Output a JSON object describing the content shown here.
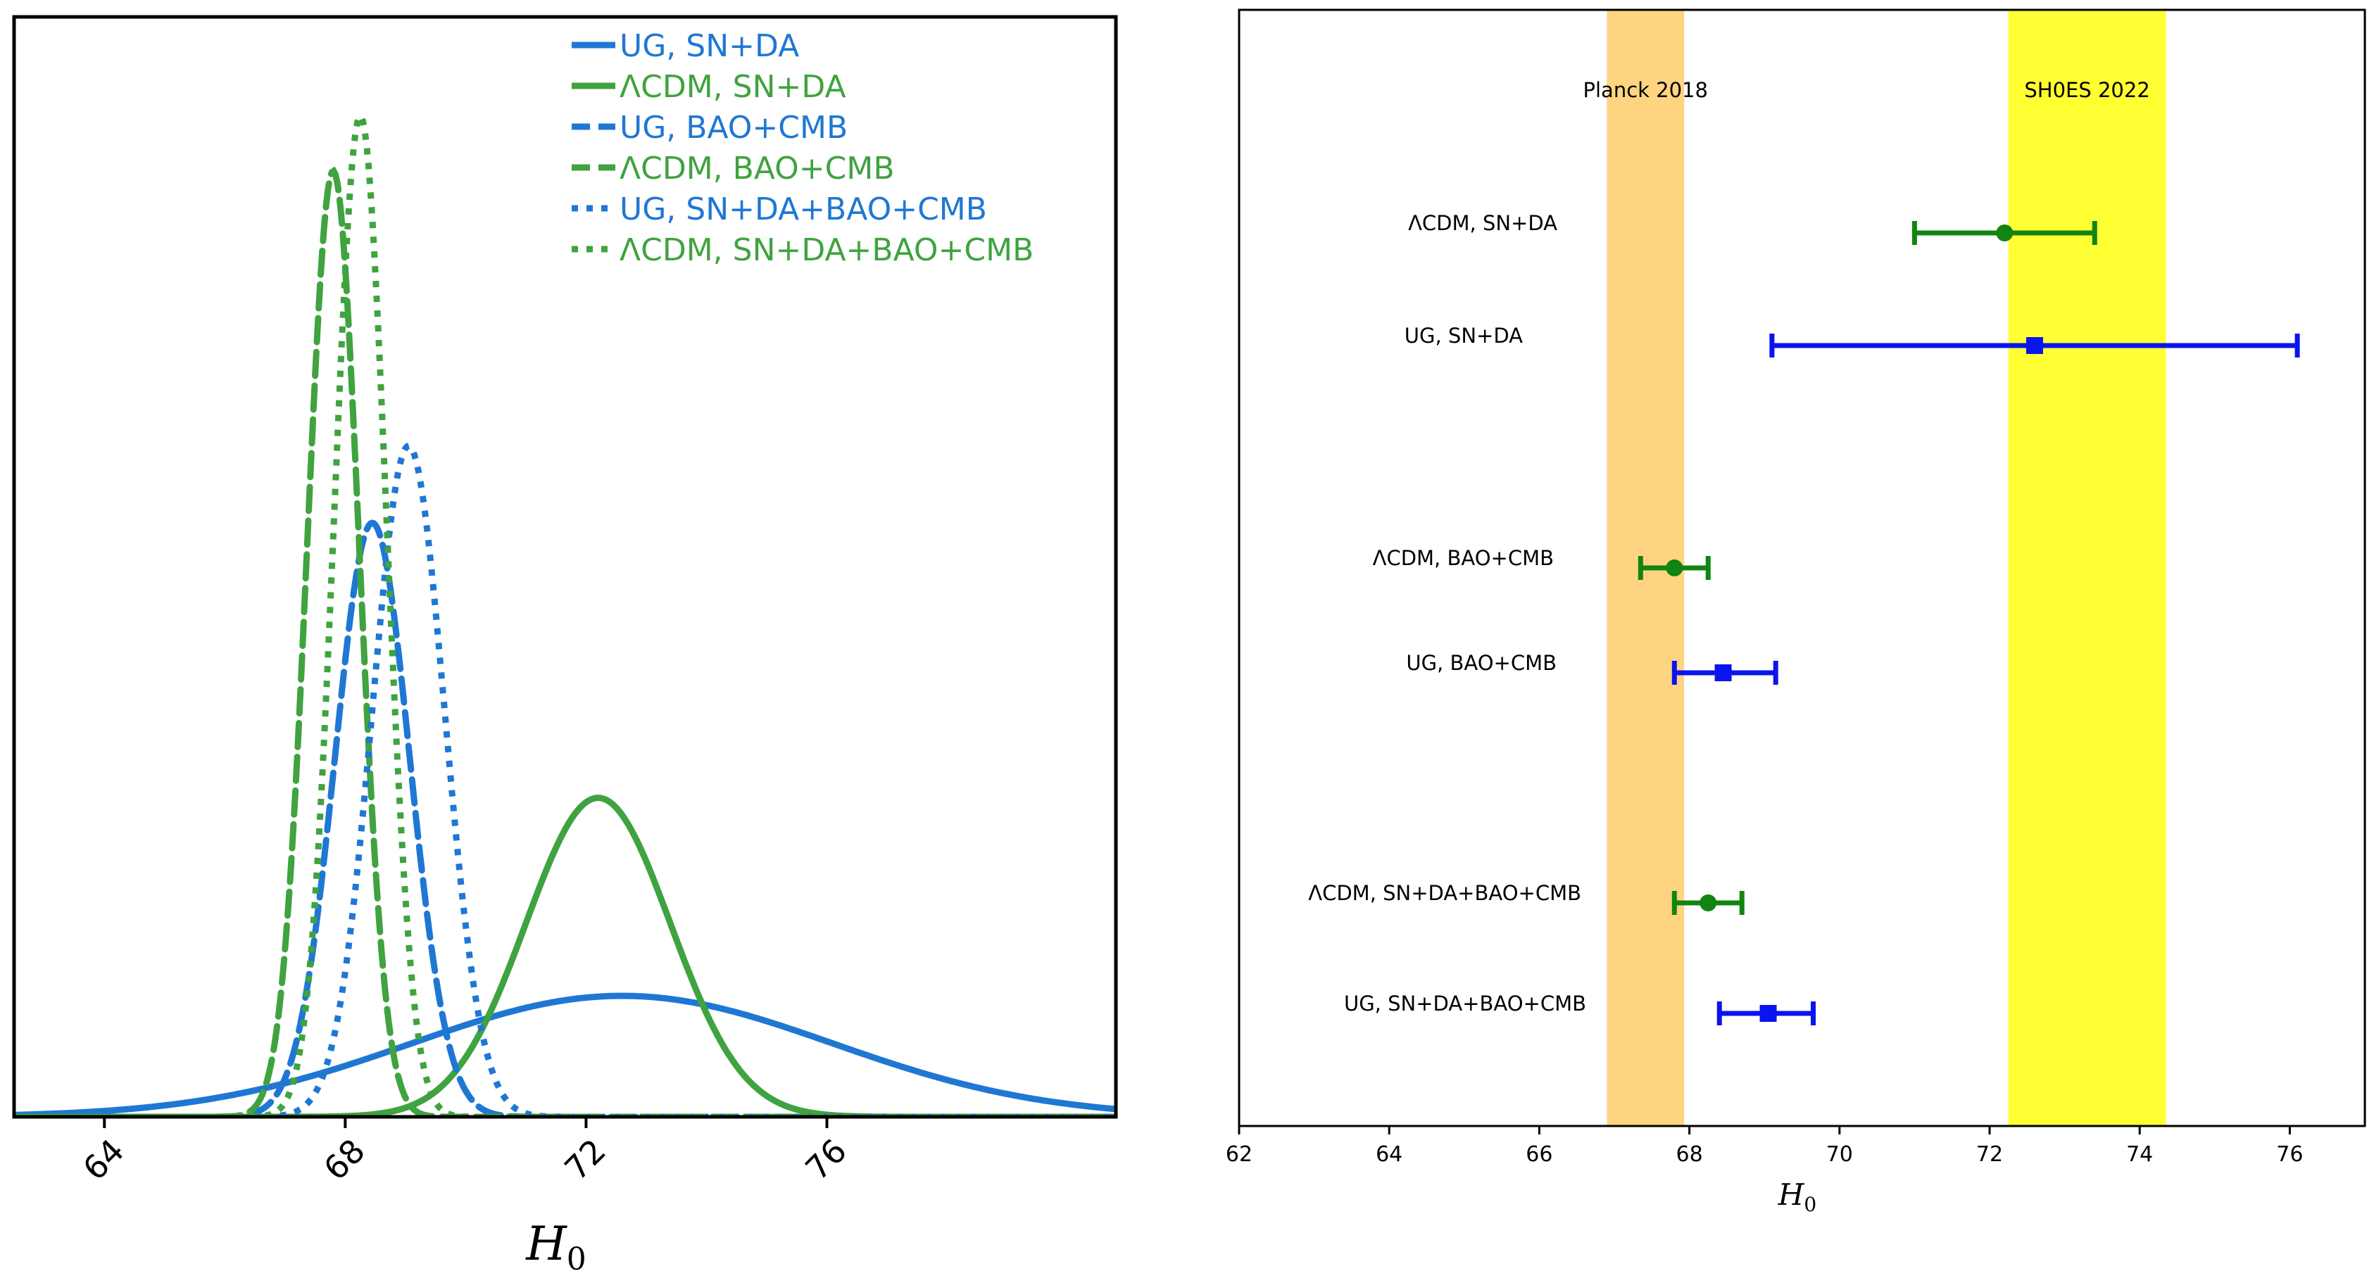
{
  "chart_data": [
    {
      "type": "line",
      "title": "",
      "xlabel": "H",
      "xlabel_sub": "0",
      "ylabel": "",
      "xlim": [
        62.5,
        80.8
      ],
      "ylim": [
        0,
        1.0
      ],
      "xticks": [
        64,
        68,
        72,
        76
      ],
      "xtick_labels": [
        "64",
        "68",
        "72",
        "76"
      ],
      "legend_position": "top-right",
      "series": [
        {
          "name": "UG, SN+DA",
          "model": "UG",
          "style": "solid",
          "mean": 72.6,
          "sigma": 3.5,
          "peak": 0.11
        },
        {
          "name": "ΛCDM, SN+DA",
          "model": "LCDM",
          "style": "solid",
          "mean": 72.2,
          "sigma": 1.2,
          "peak": 0.29
        },
        {
          "name": "UG, BAO+CMB",
          "model": "UG",
          "style": "dashed",
          "mean": 68.45,
          "sigma": 0.62,
          "peak": 0.54
        },
        {
          "name": "ΛCDM, BAO+CMB",
          "model": "LCDM",
          "style": "dashed",
          "mean": 67.8,
          "sigma": 0.43,
          "peak": 0.86
        },
        {
          "name": "UG, SN+DA+BAO+CMB",
          "model": "UG",
          "style": "dotted",
          "mean": 69.05,
          "sigma": 0.6,
          "peak": 0.61
        },
        {
          "name": "ΛCDM, SN+DA+BAO+CMB",
          "model": "LCDM",
          "style": "dotted",
          "mean": 68.25,
          "sigma": 0.43,
          "peak": 0.91
        }
      ],
      "colors": {
        "UG": "#1f77d4",
        "LCDM": "#3fa33f"
      }
    },
    {
      "type": "scatter",
      "title": "",
      "xlabel": "H",
      "xlabel_sub": "0",
      "xlim": [
        62,
        77
      ],
      "xticks": [
        62,
        64,
        66,
        68,
        70,
        72,
        74,
        76
      ],
      "xtick_labels": [
        "62",
        "64",
        "66",
        "68",
        "70",
        "72",
        "74",
        "76"
      ],
      "bands": [
        {
          "label": "Planck 2018",
          "from": 66.9,
          "to": 67.93,
          "color": "#fed481"
        },
        {
          "label": "SH0ES 2022",
          "from": 72.25,
          "to": 74.35,
          "color": "#ffff33"
        }
      ],
      "rows": [
        {
          "label": "ΛCDM, SN+DA",
          "model": "LCDM",
          "marker": "circle",
          "value": 72.2,
          "low": 71.0,
          "high": 73.4
        },
        {
          "label": "UG, SN+DA",
          "model": "UG",
          "marker": "square",
          "value": 72.6,
          "low": 69.1,
          "high": 76.1
        },
        {
          "label": "ΛCDM, BAO+CMB",
          "model": "LCDM",
          "marker": "circle",
          "value": 67.8,
          "low": 67.35,
          "high": 68.25
        },
        {
          "label": "UG, BAO+CMB",
          "model": "UG",
          "marker": "square",
          "value": 68.45,
          "low": 67.8,
          "high": 69.15
        },
        {
          "label": "ΛCDM, SN+DA+BAO+CMB",
          "model": "LCDM",
          "marker": "circle",
          "value": 68.25,
          "low": 67.8,
          "high": 68.7
        },
        {
          "label": "UG, SN+DA+BAO+CMB",
          "model": "UG",
          "marker": "square",
          "value": 69.05,
          "low": 68.4,
          "high": 69.65
        }
      ],
      "colors": {
        "UG": "#0a14ee",
        "LCDM": "#118411"
      }
    }
  ]
}
